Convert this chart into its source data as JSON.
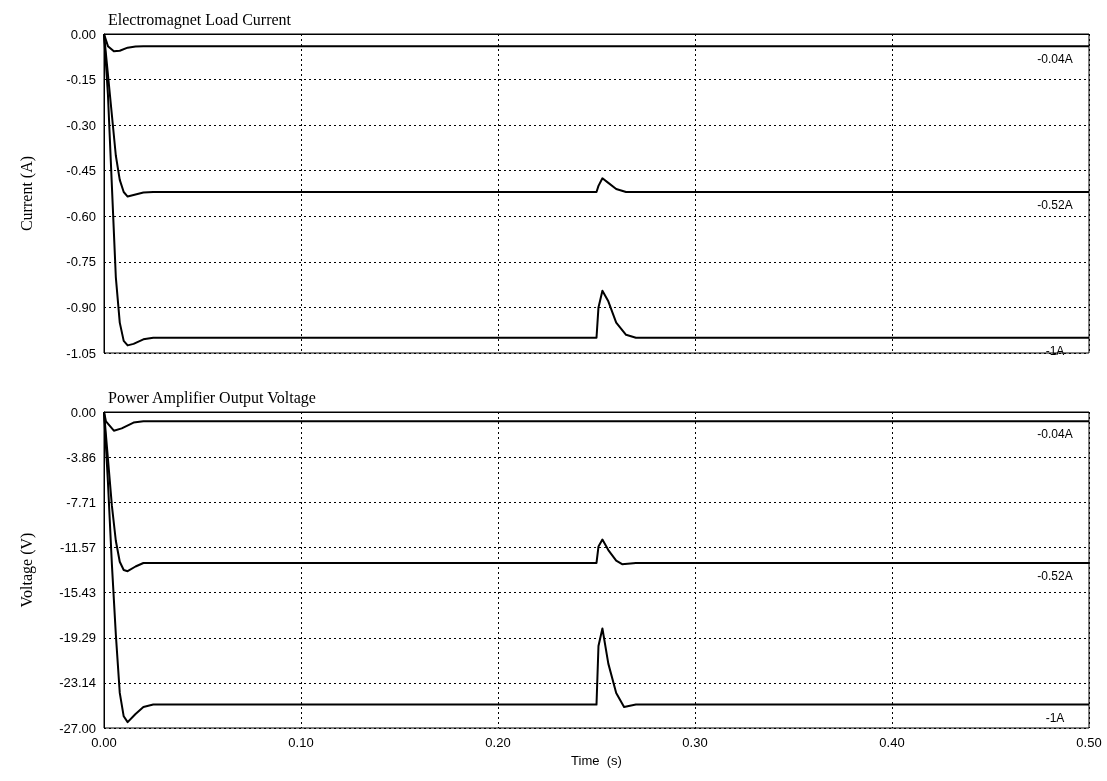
{
  "chart_data": [
    {
      "type": "line",
      "title": "Electromagnet Load Current",
      "ylabel": "Current (A)",
      "xlim": [
        0,
        0.5
      ],
      "xticks": [
        0,
        0.1,
        0.2,
        0.3,
        0.4,
        0.5
      ],
      "ylim": [
        -1.05,
        0
      ],
      "yticks": [
        {
          "value": 0,
          "label": "0.00"
        },
        {
          "value": -0.15,
          "label": "-0.15"
        },
        {
          "value": -0.3,
          "label": "-0.30"
        },
        {
          "value": -0.45,
          "label": "-0.45"
        },
        {
          "value": -0.6,
          "label": "-0.60"
        },
        {
          "value": -0.75,
          "label": "-0.75"
        },
        {
          "value": -0.9,
          "label": "-0.90"
        },
        {
          "value": -1.05,
          "label": "-1.05"
        }
      ],
      "tick_labels": "y",
      "grid": true,
      "marker": "none",
      "line_style": "solid",
      "series": [
        {
          "name": "-0.04A",
          "color": "#000000",
          "x": [
            0,
            0.002,
            0.005,
            0.008,
            0.012,
            0.016,
            0.02,
            0.25,
            0.5
          ],
          "values": [
            0,
            -0.04,
            -0.057,
            -0.055,
            -0.045,
            -0.041,
            -0.04,
            -0.04,
            -0.04
          ]
        },
        {
          "name": "-0.52A",
          "color": "#000000",
          "x": [
            0,
            0.003,
            0.006,
            0.008,
            0.01,
            0.012,
            0.015,
            0.02,
            0.025,
            0.25,
            0.251,
            0.253,
            0.256,
            0.26,
            0.265,
            0.27,
            0.5
          ],
          "values": [
            0,
            -0.2,
            -0.4,
            -0.48,
            -0.52,
            -0.535,
            -0.53,
            -0.522,
            -0.52,
            -0.52,
            -0.5,
            -0.475,
            -0.49,
            -0.51,
            -0.52,
            -0.52,
            -0.52
          ]
        },
        {
          "name": "-1A",
          "color": "#000000",
          "x": [
            0,
            0.002,
            0.004,
            0.006,
            0.008,
            0.01,
            0.012,
            0.015,
            0.02,
            0.025,
            0.25,
            0.251,
            0.253,
            0.256,
            0.26,
            0.265,
            0.27,
            0.5
          ],
          "values": [
            0,
            -0.2,
            -0.5,
            -0.8,
            -0.95,
            -1.01,
            -1.025,
            -1.02,
            -1.005,
            -1.0,
            -1.0,
            -0.9,
            -0.845,
            -0.88,
            -0.95,
            -0.99,
            -1.0,
            -1.0
          ]
        }
      ]
    },
    {
      "type": "line",
      "title": "Power Amplifier Output Voltage",
      "xlabel": "Time  (s)",
      "ylabel": "Voltage (V)",
      "xlim": [
        0,
        0.5
      ],
      "xticks": [
        {
          "value": 0,
          "label": "0.00"
        },
        {
          "value": 0.1,
          "label": "0.10"
        },
        {
          "value": 0.2,
          "label": "0.20"
        },
        {
          "value": 0.3,
          "label": "0.30"
        },
        {
          "value": 0.4,
          "label": "0.40"
        },
        {
          "value": 0.5,
          "label": "0.50"
        }
      ],
      "ylim": [
        -27,
        0
      ],
      "yticks": [
        {
          "value": 0,
          "label": "0.00"
        },
        {
          "value": -3.86,
          "label": "-3.86"
        },
        {
          "value": -7.71,
          "label": "-7.71"
        },
        {
          "value": -11.57,
          "label": "-11.57"
        },
        {
          "value": -15.43,
          "label": "-15.43"
        },
        {
          "value": -19.29,
          "label": "-19.29"
        },
        {
          "value": -23.14,
          "label": "-23.14"
        },
        {
          "value": -27,
          "label": "-27.00"
        }
      ],
      "grid": true,
      "marker": "none",
      "line_style": "solid",
      "series": [
        {
          "name": "-0.04A",
          "color": "#000000",
          "x": [
            0,
            0.001,
            0.005,
            0.009,
            0.015,
            0.02,
            0.5
          ],
          "values": [
            0,
            -0.8,
            -1.6,
            -1.4,
            -0.9,
            -0.8,
            -0.8
          ]
        },
        {
          "name": "-0.52A",
          "color": "#000000",
          "x": [
            0,
            0.002,
            0.004,
            0.006,
            0.008,
            0.01,
            0.012,
            0.016,
            0.02,
            0.25,
            0.251,
            0.253,
            0.256,
            0.26,
            0.263,
            0.27,
            0.5
          ],
          "values": [
            0,
            -4,
            -8,
            -11,
            -12.8,
            -13.5,
            -13.6,
            -13.2,
            -12.9,
            -12.9,
            -11.5,
            -10.9,
            -11.8,
            -12.7,
            -13.0,
            -12.9,
            -12.9
          ]
        },
        {
          "name": "-1A",
          "color": "#000000",
          "x": [
            0,
            0.002,
            0.004,
            0.006,
            0.008,
            0.01,
            0.012,
            0.016,
            0.02,
            0.025,
            0.25,
            0.251,
            0.253,
            0.256,
            0.26,
            0.264,
            0.27,
            0.5
          ],
          "values": [
            0,
            -6,
            -13,
            -19,
            -24,
            -26,
            -26.5,
            -25.8,
            -25.2,
            -25.0,
            -25.0,
            -20,
            -18.5,
            -21.5,
            -24,
            -25.2,
            -25.0,
            -25.0
          ]
        }
      ]
    }
  ]
}
